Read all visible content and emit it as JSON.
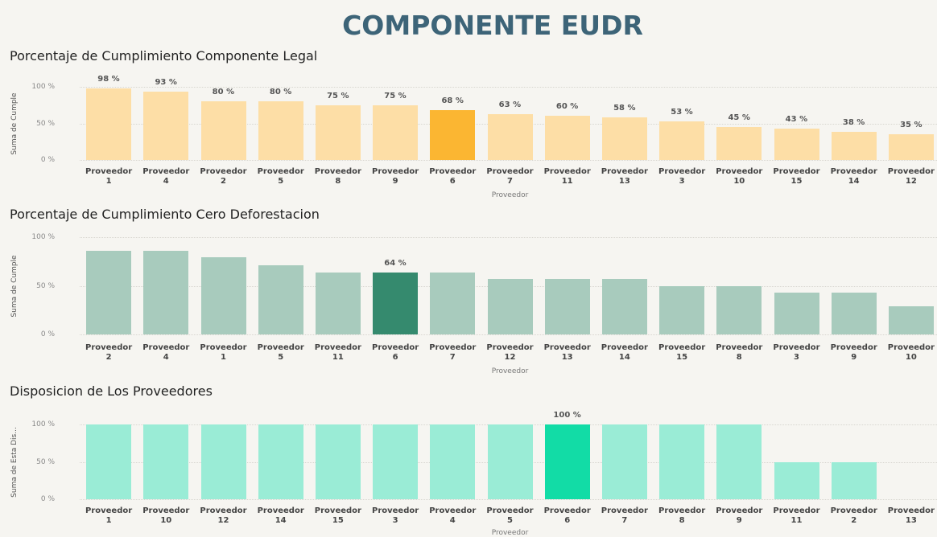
{
  "header": {
    "title": "COMPONENTE EUDR"
  },
  "chart_data": [
    {
      "type": "bar",
      "title": "Porcentaje de Cumplimiento Componente Legal",
      "y_label": "Suma de Cumple",
      "x_label": "Proveedor",
      "categories": [
        "Proveedor 1",
        "Proveedor 4",
        "Proveedor 2",
        "Proveedor 5",
        "Proveedor 8",
        "Proveedor 9",
        "Proveedor 6",
        "Proveedor 7",
        "Proveedor 11",
        "Proveedor 13",
        "Proveedor 3",
        "Proveedor 10",
        "Proveedor 15",
        "Proveedor 14",
        "Proveedor 12"
      ],
      "values": [
        98,
        93,
        80,
        80,
        75,
        75,
        68,
        63,
        60,
        58,
        53,
        45,
        43,
        38,
        35
      ],
      "value_labels": [
        "98 %",
        "93 %",
        "80 %",
        "80 %",
        "75 %",
        "75 %",
        "68 %",
        "63 %",
        "60 %",
        "58 %",
        "53 %",
        "45 %",
        "43 %",
        "38 %",
        "35 %"
      ],
      "colors": [
        "#fddea6",
        "#fddea6",
        "#fddea6",
        "#fddea6",
        "#fddea6",
        "#fddea6",
        "#fbb632",
        "#fddea6",
        "#fddea6",
        "#fddea6",
        "#fddea6",
        "#fddea6",
        "#fddea6",
        "#fddea6",
        "#fddea6"
      ],
      "ylim": [
        0,
        100
      ],
      "yticks": [
        {
          "value": 0,
          "label": "0 %"
        },
        {
          "value": 50,
          "label": "50 %"
        },
        {
          "value": 100,
          "label": "100 %"
        }
      ],
      "grid": true
    },
    {
      "type": "bar",
      "title": "Porcentaje de Cumplimiento Cero Deforestacion",
      "y_label": "Suma de Cumple",
      "x_label": "Proveedor",
      "categories": [
        "Proveedor 2",
        "Proveedor 4",
        "Proveedor 1",
        "Proveedor 5",
        "Proveedor 11",
        "Proveedor 6",
        "Proveedor 7",
        "Proveedor 12",
        "Proveedor 13",
        "Proveedor 14",
        "Proveedor 15",
        "Proveedor 8",
        "Proveedor 3",
        "Proveedor 9",
        "Proveedor 10"
      ],
      "values": [
        86,
        86,
        79,
        71,
        64,
        64,
        64,
        57,
        57,
        57,
        50,
        50,
        43,
        43,
        29
      ],
      "value_labels": [
        null,
        null,
        null,
        null,
        null,
        "64 %",
        null,
        null,
        null,
        null,
        null,
        null,
        null,
        null,
        null
      ],
      "colors": [
        "#a8cbbd",
        "#a8cbbd",
        "#a8cbbd",
        "#a8cbbd",
        "#a8cbbd",
        "#358a6e",
        "#a8cbbd",
        "#a8cbbd",
        "#a8cbbd",
        "#a8cbbd",
        "#a8cbbd",
        "#a8cbbd",
        "#a8cbbd",
        "#a8cbbd",
        "#a8cbbd"
      ],
      "ylim": [
        0,
        100
      ],
      "yticks": [
        {
          "value": 0,
          "label": "0 %"
        },
        {
          "value": 50,
          "label": "50 %"
        },
        {
          "value": 100,
          "label": "100 %"
        }
      ],
      "grid": true
    },
    {
      "type": "bar",
      "title": "Disposicion de Los Proveedores",
      "y_label": "Suma de Esta Dis...",
      "x_label": "Proveedor",
      "categories": [
        "Proveedor 1",
        "Proveedor 10",
        "Proveedor 12",
        "Proveedor 14",
        "Proveedor 15",
        "Proveedor 3",
        "Proveedor 4",
        "Proveedor 5",
        "Proveedor 6",
        "Proveedor 7",
        "Proveedor 8",
        "Proveedor 9",
        "Proveedor 11",
        "Proveedor 2",
        "Proveedor 13"
      ],
      "values": [
        100,
        100,
        100,
        100,
        100,
        100,
        100,
        100,
        100,
        100,
        100,
        100,
        50,
        50,
        0
      ],
      "value_labels": [
        null,
        null,
        null,
        null,
        null,
        null,
        null,
        null,
        "100 %",
        null,
        null,
        null,
        null,
        null,
        null
      ],
      "colors": [
        "#9aecd6",
        "#9aecd6",
        "#9aecd6",
        "#9aecd6",
        "#9aecd6",
        "#9aecd6",
        "#9aecd6",
        "#9aecd6",
        "#12dca6",
        "#9aecd6",
        "#9aecd6",
        "#9aecd6",
        "#9aecd6",
        "#9aecd6",
        "#9aecd6"
      ],
      "ylim": [
        0,
        100
      ],
      "yticks": [
        {
          "value": 0,
          "label": "0 %"
        },
        {
          "value": 50,
          "label": "50 %"
        },
        {
          "value": 100,
          "label": "100 %"
        }
      ],
      "grid": true
    }
  ]
}
